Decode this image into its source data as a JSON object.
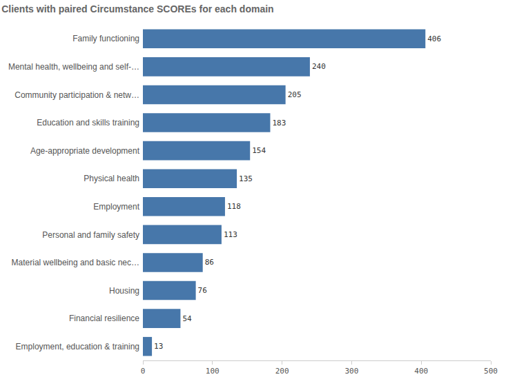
{
  "chart_data": {
    "type": "bar",
    "orientation": "horizontal",
    "title": "Clients with paired Circumstance SCOREs for each domain",
    "categories": [
      "Family functioning",
      "Mental health, wellbeing and self-…",
      "Community participation & netw…",
      "Education and skills training",
      "Age-appropriate development",
      "Physical health",
      "Employment",
      "Personal and family safety",
      "Material wellbeing and basic nec…",
      "Housing",
      "Financial resilience",
      "Employment, education & training"
    ],
    "values": [
      406,
      240,
      205,
      183,
      154,
      135,
      118,
      113,
      86,
      76,
      54,
      13
    ],
    "color": "#4777aa",
    "xlim": [
      0,
      500
    ],
    "xticks": [
      0,
      100,
      200,
      300,
      400,
      500
    ],
    "grid": false,
    "data_labels": true
  }
}
